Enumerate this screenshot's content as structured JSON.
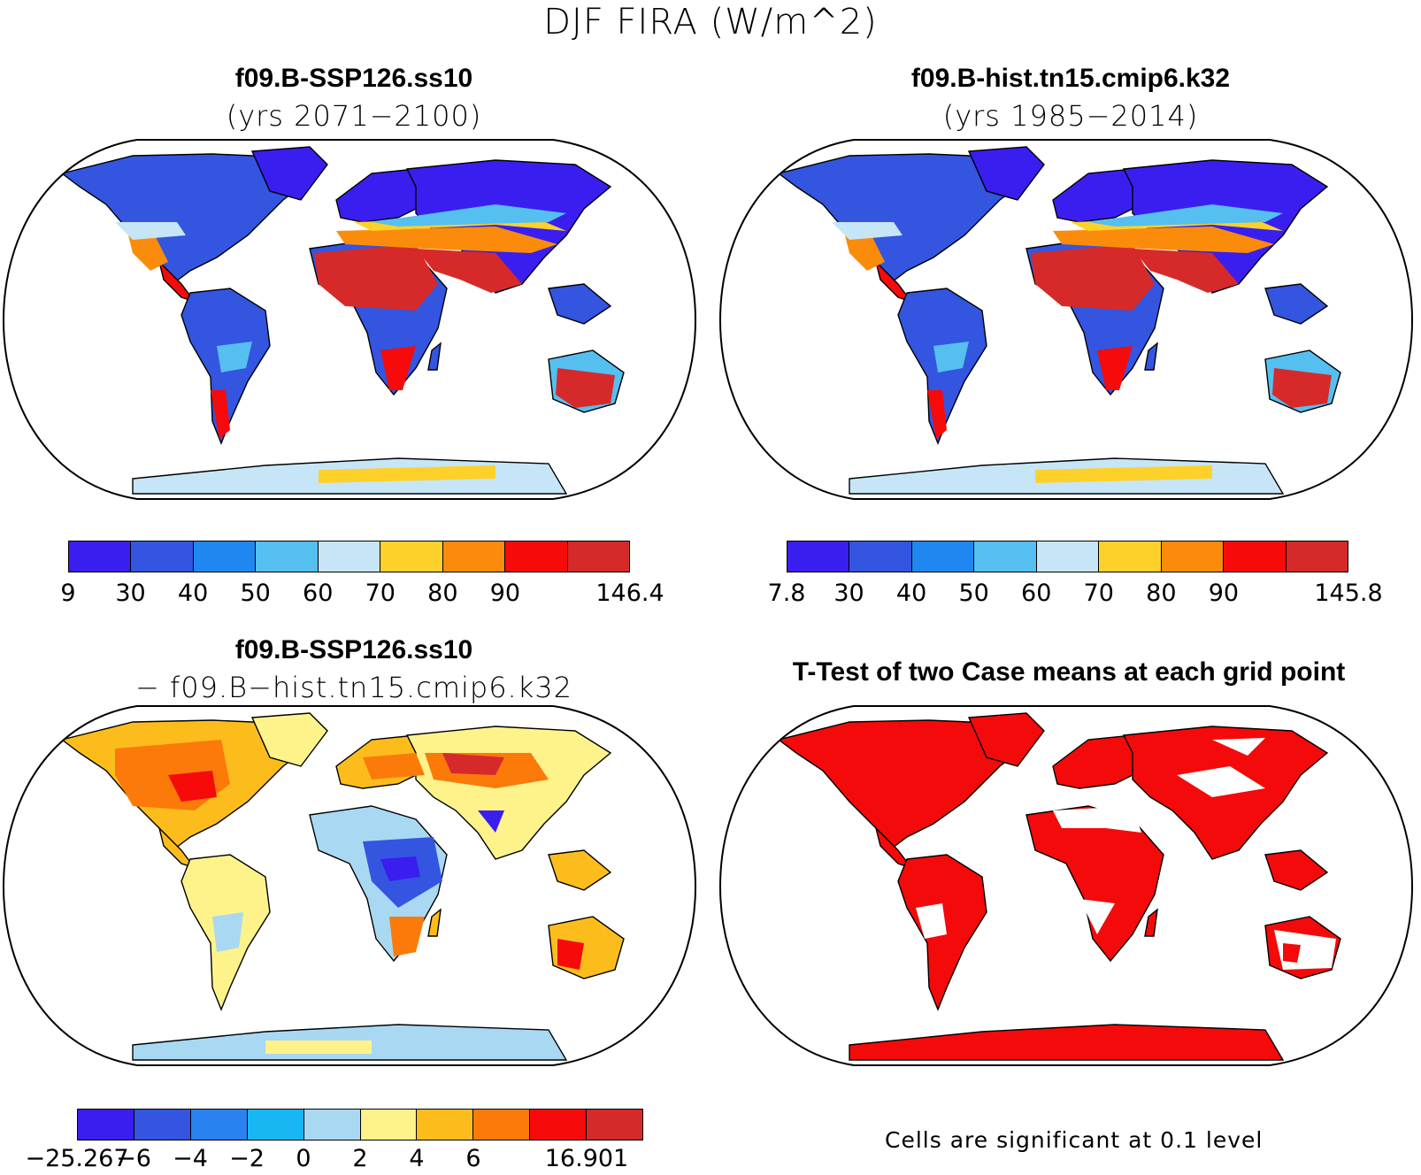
{
  "figure_title": "DJF FIRA (W/m^2)",
  "panels": {
    "top_left": {
      "title": "f09.B-SSP126.ss10",
      "subtitle": "(yrs 2071−2100)"
    },
    "top_right": {
      "title": "f09.B-hist.tn15.cmip6.k32",
      "subtitle": "(yrs 1985−2014)"
    },
    "bottom_left": {
      "title": "f09.B-SSP126.ss10",
      "subtitle": "− f09.B−hist.tn15.cmip6.k32"
    },
    "bottom_right": {
      "title": "T-Test of two Case means at each grid point",
      "note": "Cells are significant at 0.1 level"
    }
  },
  "colorbars": {
    "abs1": {
      "colors": [
        "#3a1ef0",
        "#3355e0",
        "#1e88f0",
        "#55bff0",
        "#c6e6f7",
        "#fdd12a",
        "#fb8c0b",
        "#f60a0a",
        "#d62a2a"
      ],
      "labels": [
        "9",
        "30",
        "40",
        "50",
        "60",
        "70",
        "80",
        "90",
        "",
        "146.4"
      ]
    },
    "abs2": {
      "colors": [
        "#3a1ef0",
        "#3355e0",
        "#1e88f0",
        "#55bff0",
        "#c6e6f7",
        "#fdd12a",
        "#fb8c0b",
        "#f60a0a",
        "#d62a2a"
      ],
      "labels": [
        "7.8",
        "30",
        "40",
        "50",
        "60",
        "70",
        "80",
        "90",
        "",
        "145.8"
      ]
    },
    "diff": {
      "colors": [
        "#3a1ef0",
        "#3355e0",
        "#2a82f0",
        "#18b6f2",
        "#a9d8f2",
        "#fdf38a",
        "#fcbd1c",
        "#fb7a0a",
        "#f60a0a",
        "#d62a2a"
      ],
      "labels": [
        "−25.267",
        "−6",
        "−4",
        "−2",
        "0",
        "2",
        "4",
        "6",
        "",
        "16.901"
      ]
    },
    "ttest_color": "#f40a0a"
  }
}
